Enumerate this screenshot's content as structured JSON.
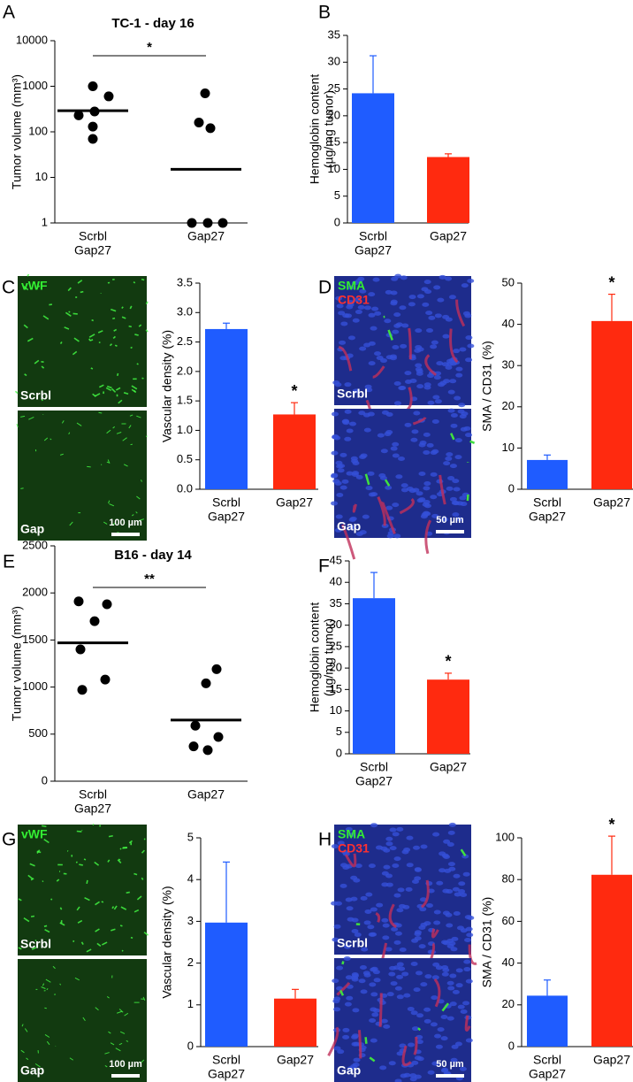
{
  "chart_data": [
    {
      "type": "strip",
      "label": "A",
      "title": "TC-1 - day 16",
      "y_label": [
        "Tumor volume (mm³)"
      ],
      "categories": [
        [
          "Scrbl",
          "Gap27"
        ],
        [
          "Gap27"
        ]
      ],
      "groups": [
        {
          "values": [
            1000,
            600,
            280,
            230,
            130,
            70
          ],
          "mean": 290
        },
        {
          "values": [
            700,
            160,
            120,
            1,
            1,
            1
          ],
          "mean": 15
        }
      ],
      "log_scale": true,
      "ylim": [
        1,
        10000
      ],
      "yticks": [
        1,
        10,
        100,
        1000,
        10000
      ],
      "bracket": "*",
      "color": "#000000"
    },
    {
      "type": "bar",
      "label": "B",
      "y_label": [
        "Hemoglobin content",
        "(µg/mg tumor)"
      ],
      "categories": [
        [
          "Scrbl",
          "Gap27"
        ],
        [
          "Gap27"
        ]
      ],
      "values": [
        24.2,
        12.3
      ],
      "errors": [
        7,
        0.6
      ],
      "colors": [
        "#1f5cff",
        "#ff2a0f"
      ],
      "ylim": [
        0,
        35
      ],
      "yticks": [
        0,
        5,
        10,
        15,
        20,
        25,
        30,
        35
      ]
    },
    {
      "type": "bar",
      "y_label": [
        "Vascular density (%)"
      ],
      "categories": [
        [
          "Scrbl",
          "Gap27"
        ],
        [
          "Gap27"
        ]
      ],
      "values": [
        2.72,
        1.27
      ],
      "errors": [
        0.1,
        0.2
      ],
      "colors": [
        "#1f5cff",
        "#ff2a0f"
      ],
      "ylim": [
        0,
        3.5
      ],
      "yticks": [
        {
          "value": 0,
          "label": "0.0"
        },
        0.5,
        {
          "value": 1,
          "label": "1.0"
        },
        1.5,
        {
          "value": 2,
          "label": "2.0"
        },
        2.5,
        {
          "value": 3,
          "label": "3.0"
        },
        3.5
      ],
      "significance": {
        "text": "*",
        "category": 1
      }
    },
    {
      "type": "bar",
      "y_label": [
        "SMA / CD31 (%)"
      ],
      "categories": [
        [
          "Scrbl",
          "Gap27"
        ],
        [
          "Gap27"
        ]
      ],
      "values": [
        7.1,
        40.8
      ],
      "errors": [
        1.2,
        6.5
      ],
      "colors": [
        "#1f5cff",
        "#ff2a0f"
      ],
      "ylim": [
        0,
        50
      ],
      "yticks": [
        0,
        10,
        20,
        30,
        40,
        50
      ],
      "significance": {
        "text": "*",
        "category": 1
      }
    },
    {
      "type": "strip",
      "label": "E",
      "title": "B16 - day 14",
      "y_label": [
        "Tumor volume (mm³)"
      ],
      "categories": [
        [
          "Scrbl",
          "Gap27"
        ],
        [
          "Gap27"
        ]
      ],
      "groups": [
        {
          "values": [
            1910,
            1880,
            1700,
            1400,
            1080,
            970
          ],
          "mean": 1470
        },
        {
          "values": [
            1190,
            1040,
            590,
            470,
            370,
            330
          ],
          "mean": 650
        }
      ],
      "ylim": [
        0,
        2500
      ],
      "yticks": [
        0,
        500,
        1000,
        1500,
        2000,
        2500
      ],
      "bracket": "**",
      "color": "#000000"
    },
    {
      "type": "bar",
      "label": "F",
      "y_label": [
        "Hemoglobin content",
        "(µg/mg tumor)"
      ],
      "categories": [
        [
          "Scrbl",
          "Gap27"
        ],
        [
          "Gap27"
        ]
      ],
      "values": [
        36.3,
        17.3
      ],
      "errors": [
        6,
        1.5
      ],
      "colors": [
        "#1f5cff",
        "#ff2a0f"
      ],
      "ylim": [
        0,
        45
      ],
      "yticks": [
        0,
        5,
        10,
        15,
        20,
        25,
        30,
        35,
        40,
        45
      ],
      "significance": {
        "text": "*",
        "category": 1
      }
    },
    {
      "type": "bar",
      "y_label": [
        "Vascular density (%)"
      ],
      "categories": [
        [
          "Scrbl",
          "Gap27"
        ],
        [
          "Gap27"
        ]
      ],
      "values": [
        2.97,
        1.15
      ],
      "errors": [
        1.45,
        0.22
      ],
      "colors": [
        "#1f5cff",
        "#ff2a0f"
      ],
      "ylim": [
        0,
        5
      ],
      "yticks": [
        0,
        1,
        2,
        3,
        4,
        5
      ]
    },
    {
      "type": "bar",
      "y_label": [
        "SMA / CD31 (%)"
      ],
      "categories": [
        [
          "Scrbl",
          "Gap27"
        ],
        [
          "Gap27"
        ]
      ],
      "values": [
        24.4,
        82.3
      ],
      "errors": [
        7.5,
        18.5
      ],
      "colors": [
        "#1f5cff",
        "#ff2a0f"
      ],
      "ylim": [
        0,
        100
      ],
      "yticks": [
        0,
        20,
        40,
        60,
        80,
        100
      ],
      "significance": {
        "text": "*",
        "category": 1
      }
    }
  ],
  "micrographs": [
    {
      "label": "C",
      "stains": [
        {
          "text": "vWF",
          "color": "#33ee33"
        }
      ],
      "top": "Scrbl",
      "bottom": "Gap",
      "scale_bar": "100 µm"
    },
    {
      "label": "D",
      "stains": [
        {
          "text": "SMA",
          "color": "#33ee33"
        },
        {
          "text": "CD31",
          "color": "#ff3030"
        }
      ],
      "top": "Scrbl",
      "bottom": "Gap",
      "scale_bar": "50 µm"
    },
    {
      "label": "G",
      "stains": [
        {
          "text": "vWF",
          "color": "#33ee33"
        }
      ],
      "top": "Scrbl",
      "bottom": "Gap",
      "scale_bar": "100 µm"
    },
    {
      "label": "H",
      "stains": [
        {
          "text": "SMA",
          "color": "#33ee33"
        },
        {
          "text": "CD31",
          "color": "#ff3030"
        }
      ],
      "top": "Scrbl",
      "bottom": "Gap",
      "scale_bar": "50 µm"
    }
  ]
}
